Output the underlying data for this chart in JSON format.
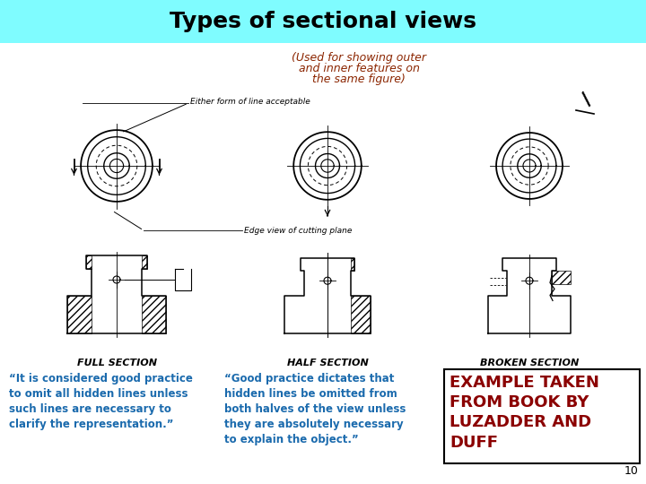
{
  "title": "Types of sectional views",
  "title_bg_color": "#7FFCFF",
  "title_text_color": "#000000",
  "subtitle_lines": [
    "(Used for showing outer",
    "and inner features on",
    "the same figure)"
  ],
  "subtitle_color": "#8B2500",
  "section_labels": [
    "FULL SECTION",
    "HALF SECTION",
    "BROKEN SECTION"
  ],
  "section_label_color": "#000000",
  "col1_quote": "“It is considered good practice\nto omit all hidden lines unless\nsuch lines are necessary to\nclarify the representation.”",
  "col2_quote": "“Good practice dictates that\nhidden lines be omitted from\nboth halves of the view unless\nthey are absolutely necessary\nto explain the object.”",
  "col3_quote": "EXAMPLE TAKEN\nFROM BOOK BY\nLUZADDER AND\nDUFF",
  "col1_quote_color": "#1a6aad",
  "col2_quote_color": "#1a6aad",
  "col3_quote_color": "#8B0000",
  "annotation1": "Either form of line acceptable",
  "annotation2": "Edge view of cutting plane",
  "page_number": "10",
  "background_color": "#ffffff"
}
